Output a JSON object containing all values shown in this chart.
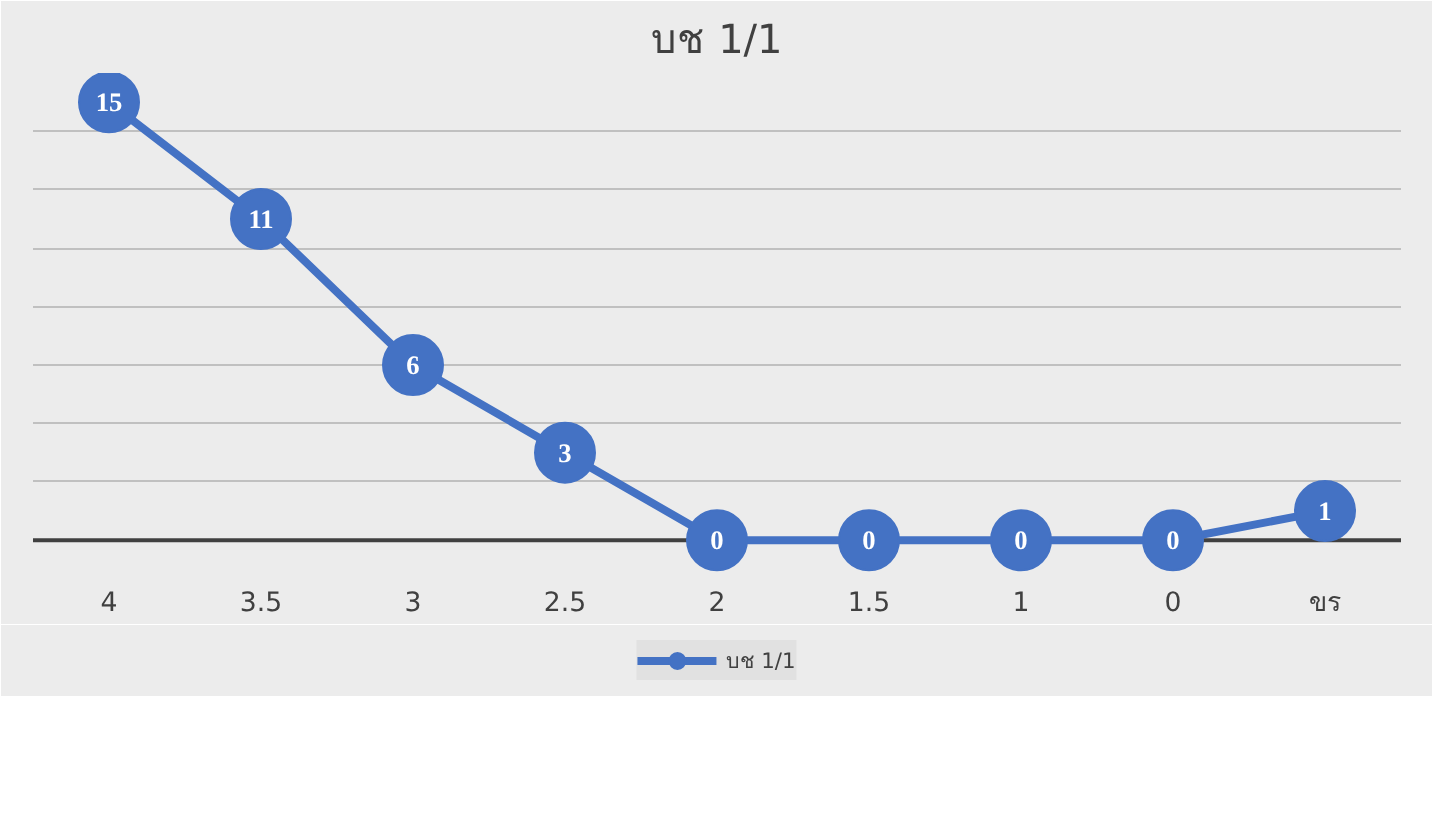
{
  "chart_data": {
    "type": "line",
    "title": "บช 1/1",
    "categories": [
      "4",
      "3.5",
      "3",
      "2.5",
      "2",
      "1.5",
      "1",
      "0",
      "ขร"
    ],
    "series": [
      {
        "name": "บช 1/1",
        "color": "#4472c4",
        "values": [
          15,
          11,
          6,
          3,
          0,
          0,
          0,
          0,
          1
        ]
      }
    ],
    "ylim": [
      0,
      16
    ],
    "yticks": [
      {
        "value": 0,
        "label": null
      },
      {
        "value": 2,
        "label": null
      },
      {
        "value": 4,
        "label": null
      },
      {
        "value": 6,
        "label": null
      },
      {
        "value": 8,
        "label": null
      },
      {
        "value": 10,
        "label": null
      },
      {
        "value": 12,
        "label": null
      },
      {
        "value": 14,
        "label": null
      },
      {
        "value": 16,
        "label": null
      }
    ],
    "grid": "y",
    "legend": "bottom",
    "marker": "circle",
    "line_style": "solid",
    "data_labels": true,
    "tick_labels": "x"
  }
}
